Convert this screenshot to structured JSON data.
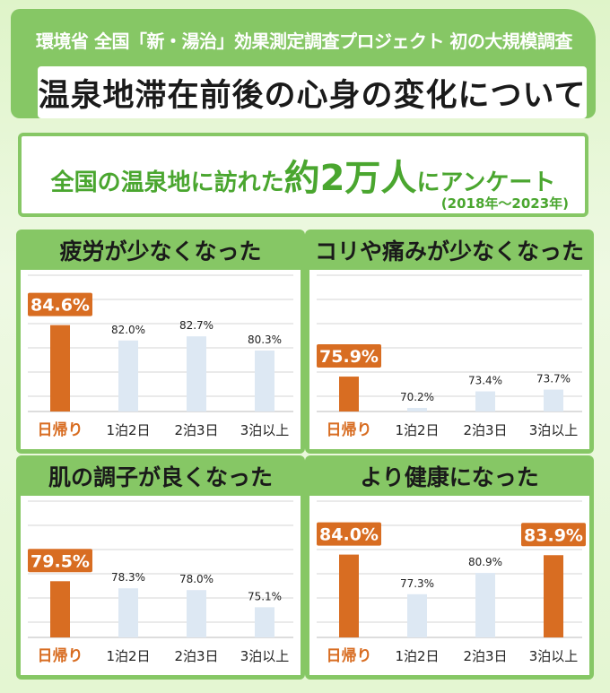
{
  "header": {
    "subtitle": "環境省 全国「新・湯治」効果測定調査プロジェクト 初の大規模調査",
    "title": "温泉地滞在前後の心身の変化について"
  },
  "survey": {
    "prefix": "全国の温泉地に訪れた",
    "count": "約2万人",
    "suffix": "にアンケート",
    "period": "(2018年～2023年)"
  },
  "colors": {
    "header_green": "#86c765",
    "highlight_orange": "#d86d22",
    "bar_light": "#dde8f3",
    "text_green": "#4aa62f"
  },
  "chart_data": [
    {
      "type": "bar",
      "title": "疲労が少なくなった",
      "categories": [
        "日帰り",
        "1泊2日",
        "2泊3日",
        "3泊以上"
      ],
      "values": [
        84.6,
        82.0,
        82.7,
        80.3
      ],
      "labels": [
        "84.6%",
        "82.0%",
        "82.7%",
        "80.3%"
      ],
      "highlight": [
        0
      ],
      "grid": true
    },
    {
      "type": "bar",
      "title": "コリや痛みが少なくなった",
      "categories": [
        "日帰り",
        "1泊2日",
        "2泊3日",
        "3泊以上"
      ],
      "values": [
        75.9,
        70.2,
        73.4,
        73.7
      ],
      "labels": [
        "75.9%",
        "70.2%",
        "73.4%",
        "73.7%"
      ],
      "highlight": [
        0
      ],
      "grid": true
    },
    {
      "type": "bar",
      "title": "肌の調子が良くなった",
      "categories": [
        "日帰り",
        "1泊2日",
        "2泊3日",
        "3泊以上"
      ],
      "values": [
        79.5,
        78.3,
        78.0,
        75.1
      ],
      "labels": [
        "79.5%",
        "78.3%",
        "78.0%",
        "75.1%"
      ],
      "highlight": [
        0
      ],
      "grid": true
    },
    {
      "type": "bar",
      "title": "より健康になった",
      "categories": [
        "日帰り",
        "1泊2日",
        "2泊3日",
        "3泊以上"
      ],
      "values": [
        84.0,
        77.3,
        80.9,
        83.9
      ],
      "labels": [
        "84.0%",
        "77.3%",
        "80.9%",
        "83.9%"
      ],
      "highlight": [
        0,
        3
      ],
      "grid": true
    }
  ]
}
